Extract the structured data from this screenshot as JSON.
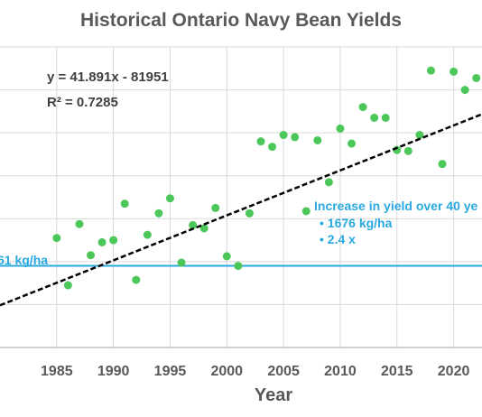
{
  "chart_data": {
    "type": "scatter",
    "title": "Historical Ontario Navy Bean Yields",
    "xlabel": "Year",
    "ylabel": "",
    "xlim": [
      1980,
      2022.5
    ],
    "ylim": [
      600,
      3400
    ],
    "x_ticks": [
      "1985",
      "1990",
      "1995",
      "2000",
      "2005",
      "2010",
      "2015",
      "2020"
    ],
    "grid": true,
    "series": [
      {
        "color": "#4cc75a",
        "points": [
          {
            "x": 1985,
            "y": 1620
          },
          {
            "x": 1986,
            "y": 1180
          },
          {
            "x": 1987,
            "y": 1750
          },
          {
            "x": 1988,
            "y": 1460
          },
          {
            "x": 1989,
            "y": 1580
          },
          {
            "x": 1990,
            "y": 1600
          },
          {
            "x": 1991,
            "y": 1940
          },
          {
            "x": 1992,
            "y": 1230
          },
          {
            "x": 1993,
            "y": 1650
          },
          {
            "x": 1994,
            "y": 1850
          },
          {
            "x": 1995,
            "y": 1990
          },
          {
            "x": 1996,
            "y": 1390
          },
          {
            "x": 1997,
            "y": 1740
          },
          {
            "x": 1998,
            "y": 1710
          },
          {
            "x": 1999,
            "y": 1900
          },
          {
            "x": 2000,
            "y": 1450
          },
          {
            "x": 2001,
            "y": 1360
          },
          {
            "x": 2002,
            "y": 1850
          },
          {
            "x": 2003,
            "y": 2520
          },
          {
            "x": 2004,
            "y": 2470
          },
          {
            "x": 2005,
            "y": 2580
          },
          {
            "x": 2006,
            "y": 2560
          },
          {
            "x": 2007,
            "y": 1870
          },
          {
            "x": 2008,
            "y": 2530
          },
          {
            "x": 2009,
            "y": 2140
          },
          {
            "x": 2010,
            "y": 2640
          },
          {
            "x": 2011,
            "y": 2500
          },
          {
            "x": 2012,
            "y": 2840
          },
          {
            "x": 2013,
            "y": 2740
          },
          {
            "x": 2014,
            "y": 2740
          },
          {
            "x": 2015,
            "y": 2440
          },
          {
            "x": 2016,
            "y": 2430
          },
          {
            "x": 2017,
            "y": 2580
          },
          {
            "x": 2018,
            "y": 3180
          },
          {
            "x": 2019,
            "y": 2310
          },
          {
            "x": 2020,
            "y": 3170
          },
          {
            "x": 2021,
            "y": 3000
          },
          {
            "x": 2022,
            "y": 3110
          }
        ]
      }
    ],
    "trendline": {
      "slope": 41.891,
      "intercept": -81951,
      "color": "#000000",
      "style": "dashed",
      "equation_label": "y = 41.891x - 81951",
      "r2_label": "R² = 0.7285"
    },
    "reference_line": {
      "y": 1361,
      "color": "#29a9e0",
      "label": "61 kg/ha"
    },
    "annotation": {
      "heading": "Increase in yield over 40 ye",
      "bullets": [
        "1676 kg/ha",
        "2.4 x"
      ],
      "color": "#29a9e0"
    }
  }
}
